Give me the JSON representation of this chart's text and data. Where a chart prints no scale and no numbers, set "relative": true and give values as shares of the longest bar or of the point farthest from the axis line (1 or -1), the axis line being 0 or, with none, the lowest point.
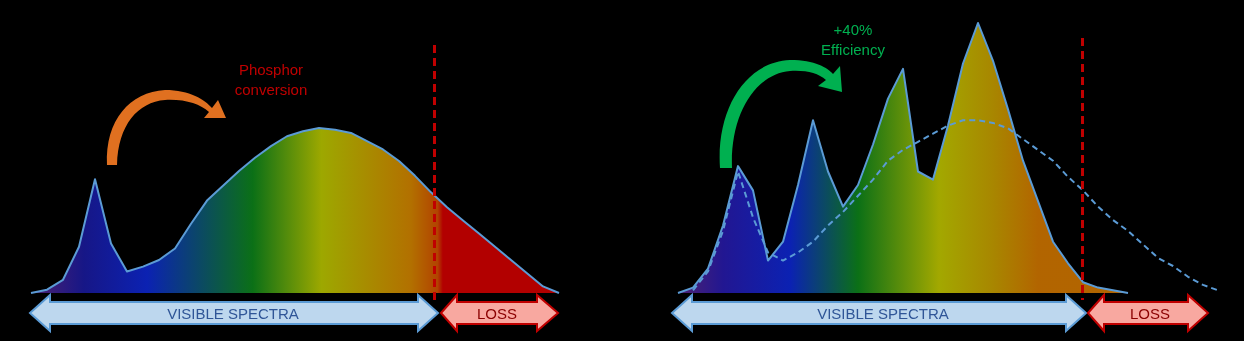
{
  "chart_data": [
    {
      "type": "area",
      "relative": true,
      "categories": [
        null,
        null,
        null,
        null,
        null,
        null,
        null,
        null,
        null,
        null,
        null,
        null,
        null,
        null,
        null,
        null,
        null,
        null,
        null,
        null,
        null,
        null,
        null,
        null,
        null,
        null,
        null,
        null,
        null,
        null,
        null,
        null,
        null,
        null
      ],
      "series": [
        {
          "color": "#5b9bd5",
          "values": [
            0,
            0.02,
            0.08,
            0.28,
            0.69,
            0.3,
            0.13,
            0.16,
            0.2,
            0.27,
            0.42,
            0.56,
            0.65,
            0.74,
            0.82,
            0.89,
            0.95,
            0.98,
            1,
            0.99,
            0.97,
            0.92,
            0.87,
            0.8,
            0.71,
            0.61,
            0.52,
            0.44,
            0.36,
            0.28,
            0.2,
            0.12,
            0.04,
            0
          ]
        }
      ],
      "annotations": [
        "Phosphor\nconversion",
        "VISIBLE SPECTRA",
        "LOSS"
      ]
    },
    {
      "type": "area",
      "relative": true,
      "categories": [
        null,
        null,
        null,
        null,
        null,
        null,
        null,
        null,
        null,
        null,
        null,
        null,
        null,
        null,
        null,
        null,
        null,
        null,
        null,
        null,
        null,
        null,
        null,
        null,
        null,
        null,
        null,
        null,
        null,
        null,
        null,
        null,
        null,
        null,
        null,
        null,
        null
      ],
      "series": [
        {
          "color": "#5b9bd5",
          "values": [
            0,
            0.02,
            0.09,
            0.25,
            0.47,
            0.38,
            0.12,
            0.19,
            0.4,
            0.64,
            0.45,
            0.32,
            0.4,
            0.55,
            0.72,
            0.83,
            0.45,
            0.42,
            0.62,
            0.85,
            1,
            0.86,
            0.68,
            0.49,
            0.34,
            0.19,
            0.11,
            0.04,
            0.02,
            0.01,
            0,
            null,
            null,
            null,
            null,
            null,
            null
          ]
        },
        {
          "type": "line",
          "line_style": "dashed",
          "color": "#5b9bd5",
          "values": [
            null,
            0.01,
            0.08,
            0.23,
            0.45,
            0.28,
            0.15,
            0.12,
            0.15,
            0.19,
            0.25,
            0.3,
            0.36,
            0.42,
            0.49,
            0.53,
            0.56,
            0.59,
            0.62,
            0.64,
            0.64,
            0.63,
            0.61,
            0.57,
            0.53,
            0.49,
            0.43,
            0.38,
            0.32,
            0.27,
            0.23,
            0.18,
            0.13,
            0.1,
            0.06,
            0.03,
            0.01
          ]
        }
      ],
      "annotations": [
        "+40%\nEfficiency",
        "VISIBLE SPECTRA",
        "LOSS"
      ]
    }
  ]
}
